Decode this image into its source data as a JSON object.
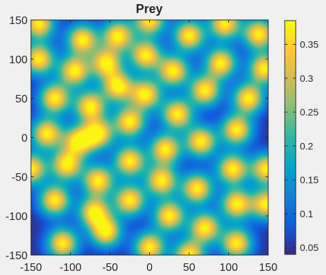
{
  "chart_data": {
    "type": "heatmap",
    "title": "Prey",
    "xlabel": "",
    "ylabel": "",
    "xlim": [
      -150,
      150
    ],
    "ylim": [
      -150,
      150
    ],
    "x_ticks": [
      -150,
      -100,
      -50,
      0,
      50,
      100,
      150
    ],
    "y_ticks": [
      -150,
      -100,
      -50,
      0,
      50,
      100,
      150
    ],
    "colorbar": {
      "range": [
        0.04,
        0.385
      ],
      "ticks": [
        0.05,
        0.1,
        0.15,
        0.2,
        0.25,
        0.3,
        0.35
      ],
      "tick_labels": [
        "0.05",
        "0.1",
        "0.15",
        "0.2",
        "0.25",
        "0.3",
        "0.35"
      ],
      "colormap": "parula",
      "colormap_stops": [
        "#352a87",
        "#0f5cdd",
        "#1481d6",
        "#06a4ca",
        "#2eb7a4",
        "#87bf77",
        "#d1bb59",
        "#fec832",
        "#f9fb0e"
      ]
    },
    "background_level": 0.045,
    "spot_peak_level": 0.38,
    "spots": [
      {
        "x": -140,
        "y": 145
      },
      {
        "x": -85,
        "y": 125
      },
      {
        "x": -40,
        "y": 130
      },
      {
        "x": 0,
        "y": 150
      },
      {
        "x": 50,
        "y": 130
      },
      {
        "x": 95,
        "y": 145
      },
      {
        "x": 138,
        "y": 132
      },
      {
        "x": -140,
        "y": 100
      },
      {
        "x": -95,
        "y": 85
      },
      {
        "x": -55,
        "y": 95
      },
      {
        "x": -5,
        "y": 105
      },
      {
        "x": 30,
        "y": 85
      },
      {
        "x": 90,
        "y": 95
      },
      {
        "x": 145,
        "y": 88
      },
      {
        "x": -120,
        "y": 50
      },
      {
        "x": -75,
        "y": 40
      },
      {
        "x": -40,
        "y": 65
      },
      {
        "x": -5,
        "y": 55
      },
      {
        "x": 35,
        "y": 30
      },
      {
        "x": 70,
        "y": 60
      },
      {
        "x": 125,
        "y": 50
      },
      {
        "x": -130,
        "y": 5
      },
      {
        "x": -90,
        "y": -5
      },
      {
        "x": -65,
        "y": 5
      },
      {
        "x": -25,
        "y": 20
      },
      {
        "x": 20,
        "y": -15
      },
      {
        "x": 65,
        "y": -5
      },
      {
        "x": 110,
        "y": 10
      },
      {
        "x": -150,
        "y": -40
      },
      {
        "x": -105,
        "y": -35
      },
      {
        "x": -65,
        "y": -55
      },
      {
        "x": -25,
        "y": -30
      },
      {
        "x": 15,
        "y": -55
      },
      {
        "x": 60,
        "y": -65
      },
      {
        "x": 105,
        "y": -40
      },
      {
        "x": 148,
        "y": -40
      },
      {
        "x": -120,
        "y": -80
      },
      {
        "x": -70,
        "y": -95
      },
      {
        "x": -25,
        "y": -80
      },
      {
        "x": 25,
        "y": -100
      },
      {
        "x": 70,
        "y": -115
      },
      {
        "x": 110,
        "y": -85
      },
      {
        "x": 148,
        "y": -85
      },
      {
        "x": -110,
        "y": -135
      },
      {
        "x": -55,
        "y": -120
      },
      {
        "x": 0,
        "y": -140
      },
      {
        "x": 50,
        "y": -150
      },
      {
        "x": 110,
        "y": -135
      }
    ]
  }
}
